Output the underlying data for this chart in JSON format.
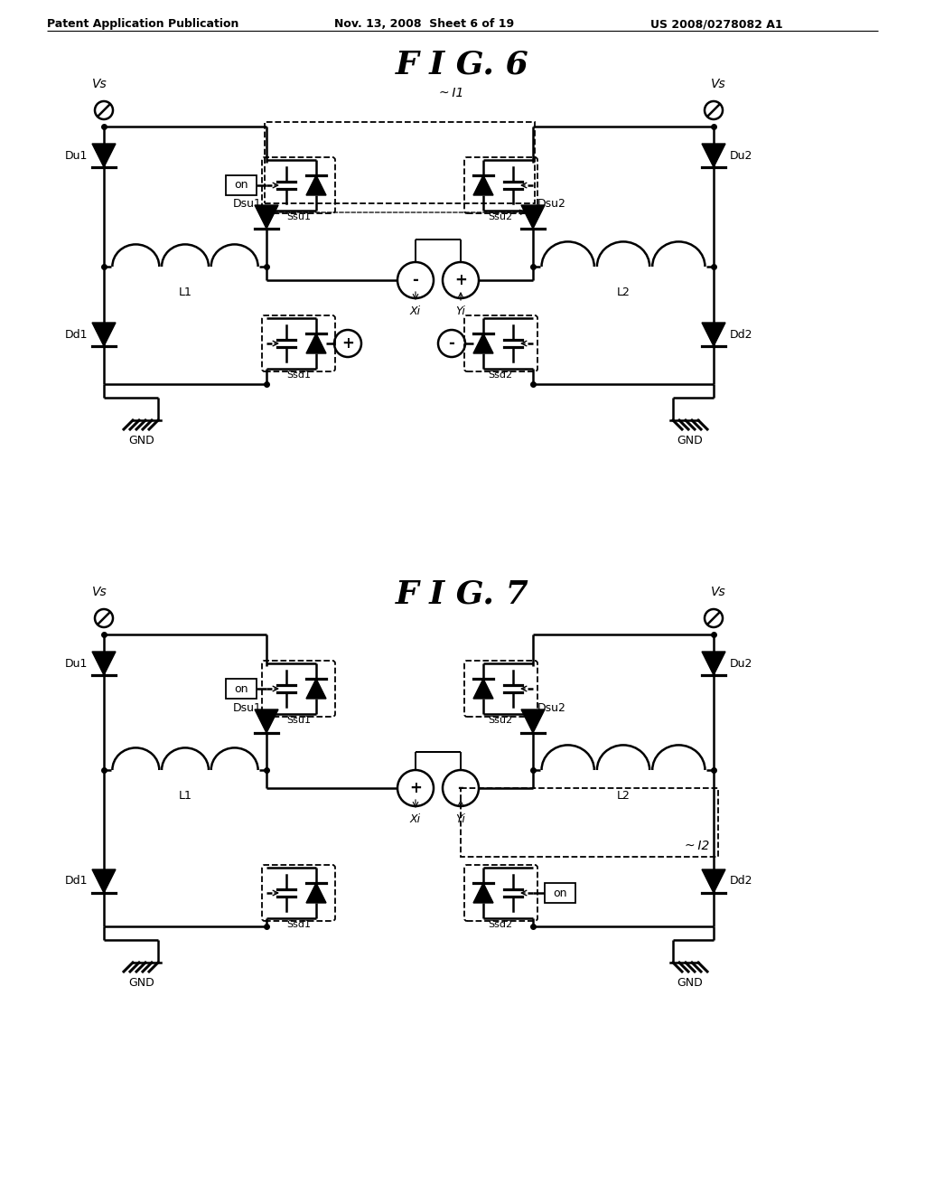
{
  "header_left": "Patent Application Publication",
  "header_mid": "Nov. 13, 2008  Sheet 6 of 19",
  "header_right": "US 2008/0278082 A1",
  "fig6_title": "F I G. 6",
  "fig7_title": "F I G. 7",
  "bg_color": "#ffffff",
  "line_color": "#000000",
  "lw": 1.8
}
